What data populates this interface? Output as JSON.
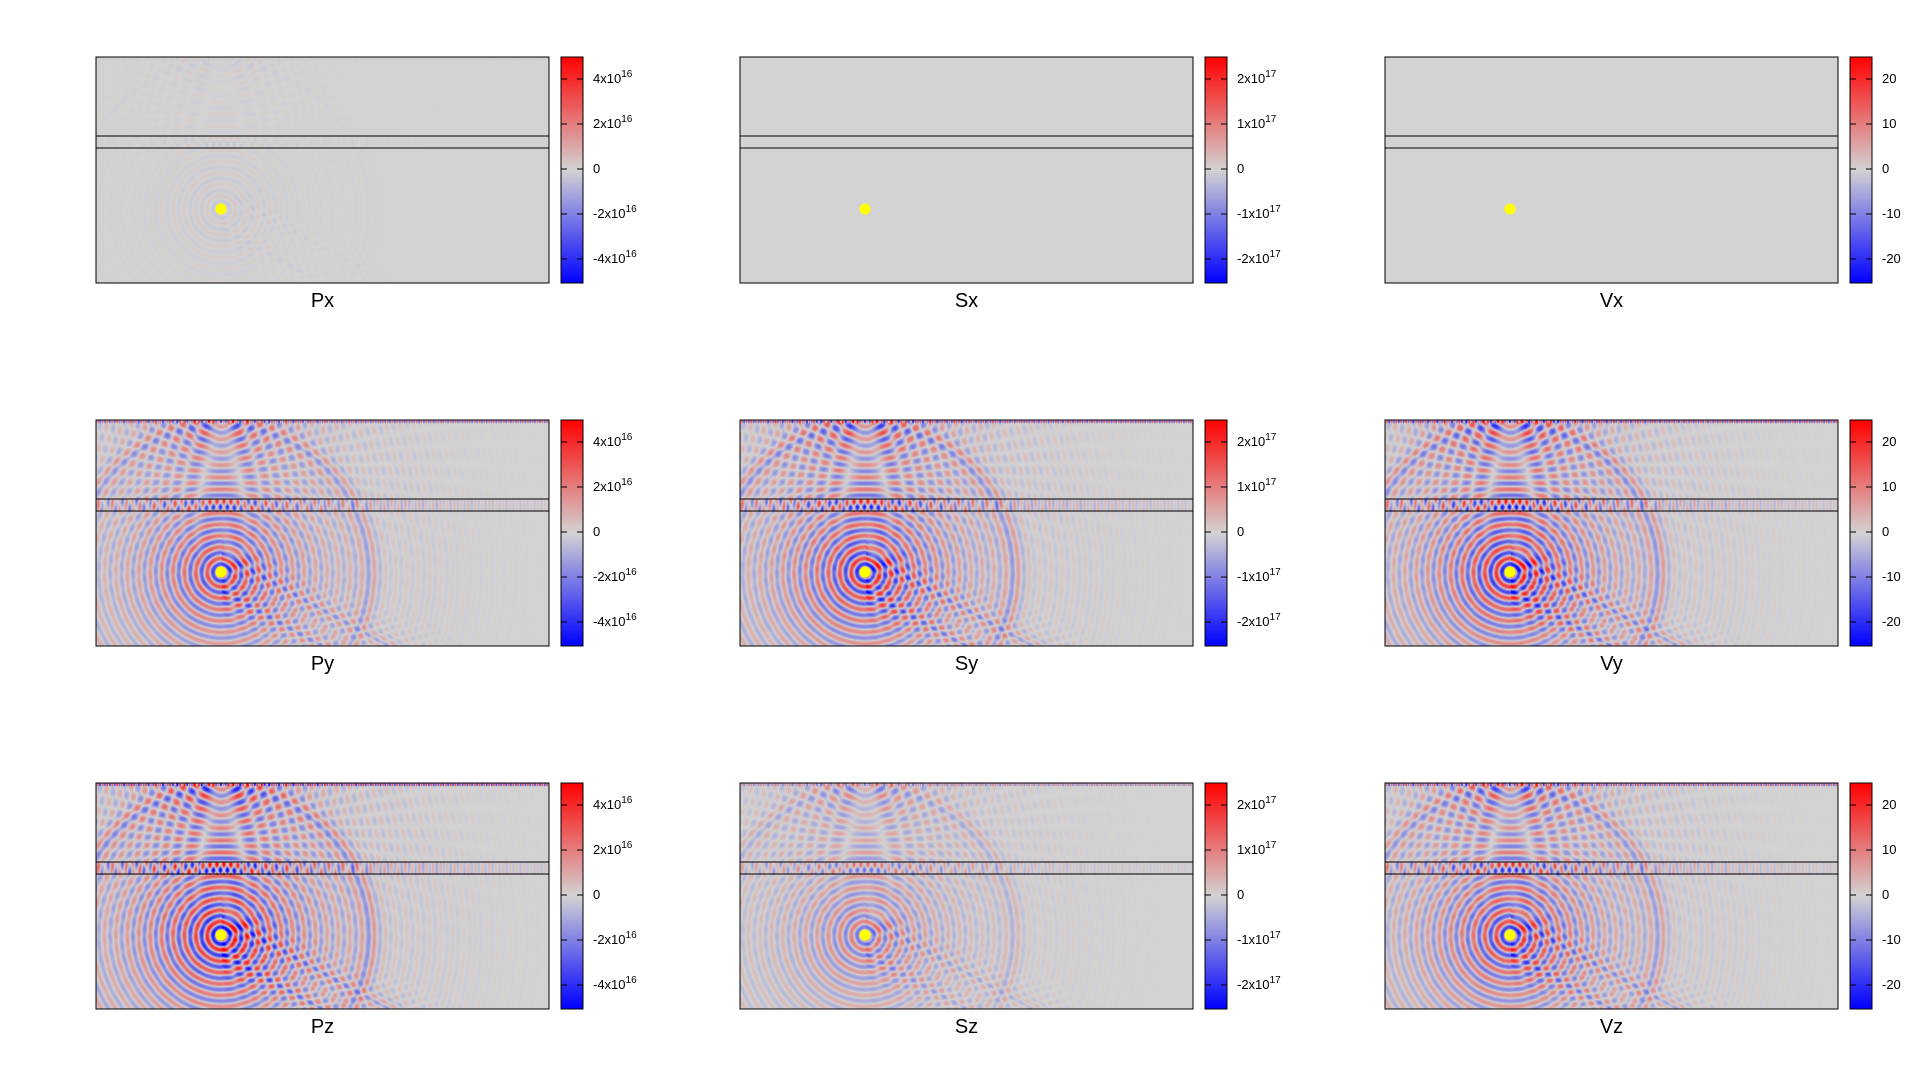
{
  "chart_data": {
    "type": "heatmap",
    "layout": {
      "rows": 3,
      "cols": 3
    },
    "colormap": {
      "negative": "#0000ff",
      "zero": "#d3d3d3",
      "positive": "#ff0000"
    },
    "overlays": {
      "interface_lines": 2,
      "source_marker_color": "#ffff00"
    },
    "panels": [
      {
        "title": "Px",
        "scale_group": "P",
        "activity": 0.05,
        "colorbar": {
          "ticks": [
            {
              "base": "4x10",
              "exp": "16"
            },
            {
              "base": "2x10",
              "exp": "16"
            },
            {
              "base": "0",
              "exp": ""
            },
            {
              "base": "-2x10",
              "exp": "16"
            },
            {
              "base": "-4x10",
              "exp": "16"
            }
          ]
        }
      },
      {
        "title": "Sx",
        "scale_group": "S",
        "activity": 0.0,
        "colorbar": {
          "ticks": [
            {
              "base": "2x10",
              "exp": "17"
            },
            {
              "base": "1x10",
              "exp": "17"
            },
            {
              "base": "0",
              "exp": ""
            },
            {
              "base": "-1x10",
              "exp": "17"
            },
            {
              "base": "-2x10",
              "exp": "17"
            }
          ]
        }
      },
      {
        "title": "Vx",
        "scale_group": "V",
        "activity": 0.0,
        "colorbar": {
          "ticks": [
            {
              "base": "20",
              "exp": ""
            },
            {
              "base": "10",
              "exp": ""
            },
            {
              "base": "0",
              "exp": ""
            },
            {
              "base": "-10",
              "exp": ""
            },
            {
              "base": "-20",
              "exp": ""
            }
          ]
        }
      },
      {
        "title": "Py",
        "scale_group": "P",
        "activity": 0.7,
        "colorbar": {
          "ticks": [
            {
              "base": "4x10",
              "exp": "16"
            },
            {
              "base": "2x10",
              "exp": "16"
            },
            {
              "base": "0",
              "exp": ""
            },
            {
              "base": "-2x10",
              "exp": "16"
            },
            {
              "base": "-4x10",
              "exp": "16"
            }
          ]
        }
      },
      {
        "title": "Sy",
        "scale_group": "S",
        "activity": 0.8,
        "colorbar": {
          "ticks": [
            {
              "base": "2x10",
              "exp": "17"
            },
            {
              "base": "1x10",
              "exp": "17"
            },
            {
              "base": "0",
              "exp": ""
            },
            {
              "base": "-1x10",
              "exp": "17"
            },
            {
              "base": "-2x10",
              "exp": "17"
            }
          ]
        }
      },
      {
        "title": "Vy",
        "scale_group": "V",
        "activity": 0.85,
        "colorbar": {
          "ticks": [
            {
              "base": "20",
              "exp": ""
            },
            {
              "base": "10",
              "exp": ""
            },
            {
              "base": "0",
              "exp": ""
            },
            {
              "base": "-10",
              "exp": ""
            },
            {
              "base": "-20",
              "exp": ""
            }
          ]
        }
      },
      {
        "title": "Pz",
        "scale_group": "P",
        "activity": 0.9,
        "colorbar": {
          "ticks": [
            {
              "base": "4x10",
              "exp": "16"
            },
            {
              "base": "2x10",
              "exp": "16"
            },
            {
              "base": "0",
              "exp": ""
            },
            {
              "base": "-2x10",
              "exp": "16"
            },
            {
              "base": "-4x10",
              "exp": "16"
            }
          ]
        }
      },
      {
        "title": "Sz",
        "scale_group": "S",
        "activity": 0.45,
        "colorbar": {
          "ticks": [
            {
              "base": "2x10",
              "exp": "17"
            },
            {
              "base": "1x10",
              "exp": "17"
            },
            {
              "base": "0",
              "exp": ""
            },
            {
              "base": "-1x10",
              "exp": "17"
            },
            {
              "base": "-2x10",
              "exp": "17"
            }
          ]
        }
      },
      {
        "title": "Vz",
        "scale_group": "V",
        "activity": 0.75,
        "colorbar": {
          "ticks": [
            {
              "base": "20",
              "exp": ""
            },
            {
              "base": "10",
              "exp": ""
            },
            {
              "base": "0",
              "exp": ""
            },
            {
              "base": "-10",
              "exp": ""
            },
            {
              "base": "-20",
              "exp": ""
            }
          ]
        }
      }
    ]
  }
}
